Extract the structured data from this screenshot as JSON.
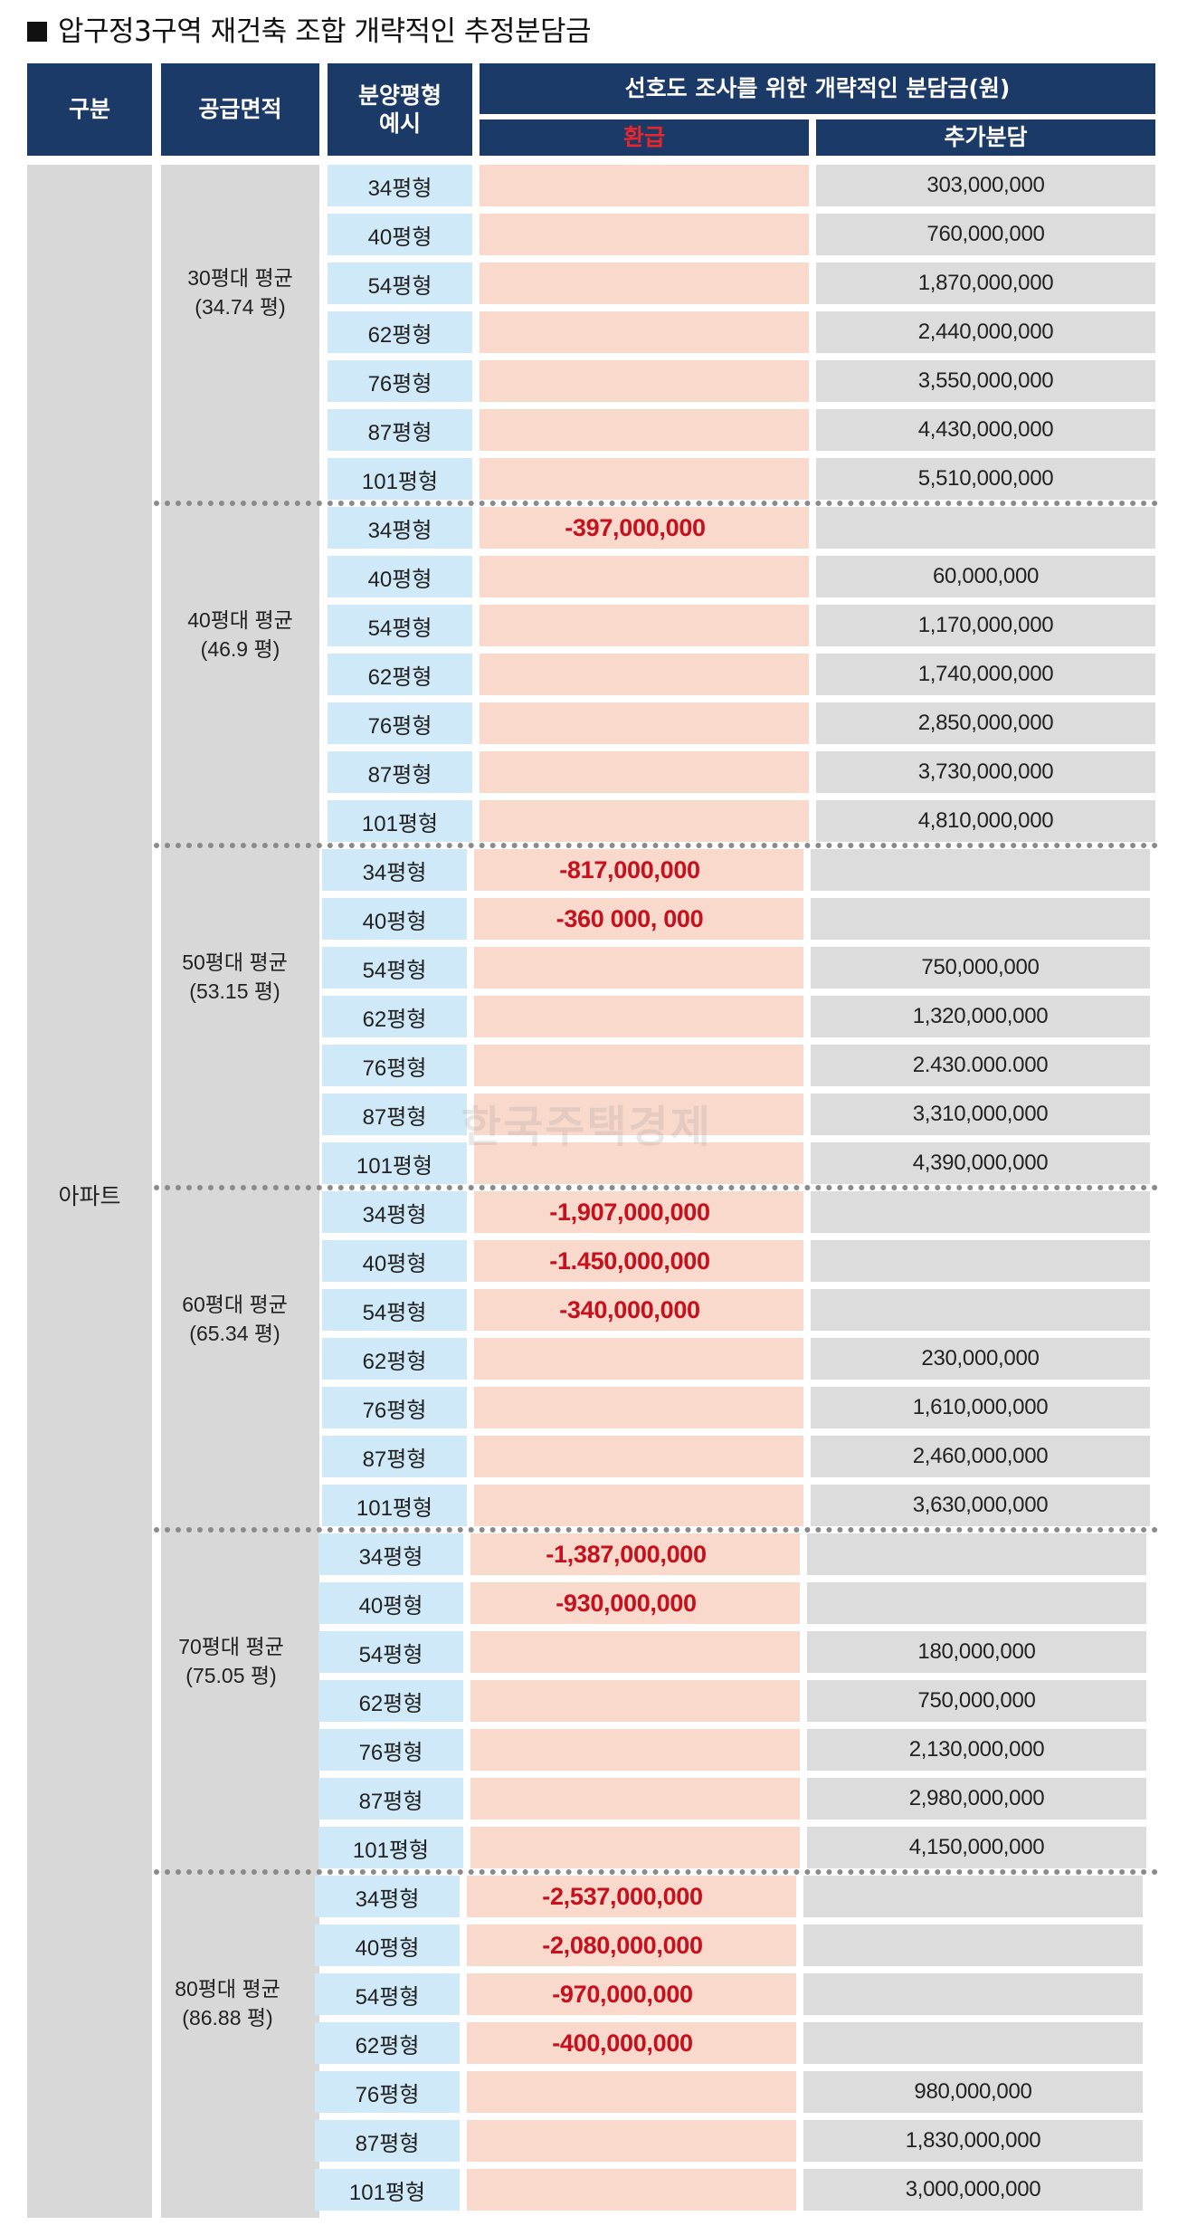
{
  "title": "압구정3구역 재건축 조합 개략적인 추정분담금",
  "headers": {
    "category": "구분",
    "supply_area": "공급면적",
    "type_example_line1": "분양평형",
    "type_example_line2": "예시",
    "survey": "선호도 조사를 위한 개략적인 분담금(원)",
    "refund": "환급",
    "additional": "추가분담"
  },
  "category_label": "아파트",
  "watermark": "한국주택경제",
  "groups": [
    {
      "label": "30평대 평균",
      "avg": "(34.74 평)",
      "rows": [
        {
          "type": "34평형",
          "refund": "",
          "add": "303,000,000"
        },
        {
          "type": "40평형",
          "refund": "",
          "add": "760,000,000"
        },
        {
          "type": "54평형",
          "refund": "",
          "add": "1,870,000,000"
        },
        {
          "type": "62평형",
          "refund": "",
          "add": "2,440,000,000"
        },
        {
          "type": "76평형",
          "refund": "",
          "add": "3,550,000,000"
        },
        {
          "type": "87평형",
          "refund": "",
          "add": "4,430,000,000"
        },
        {
          "type": "101평형",
          "refund": "",
          "add": "5,510,000,000"
        }
      ]
    },
    {
      "label": "40평대 평균",
      "avg": "(46.9 평)",
      "rows": [
        {
          "type": "34평형",
          "refund": "-397,000,000",
          "add": ""
        },
        {
          "type": "40평형",
          "refund": "",
          "add": "60,000,000"
        },
        {
          "type": "54평형",
          "refund": "",
          "add": "1,170,000,000"
        },
        {
          "type": "62평형",
          "refund": "",
          "add": "1,740,000,000"
        },
        {
          "type": "76평형",
          "refund": "",
          "add": "2,850,000,000"
        },
        {
          "type": "87평형",
          "refund": "",
          "add": "3,730,000,000"
        },
        {
          "type": "101평형",
          "refund": "",
          "add": "4,810,000,000"
        }
      ]
    },
    {
      "label": "50평대 평균",
      "avg": "(53.15 평)",
      "rows": [
        {
          "type": "34평형",
          "refund": "-817,000,000",
          "add": ""
        },
        {
          "type": "40평형",
          "refund": "-360 000, 000",
          "add": ""
        },
        {
          "type": "54평형",
          "refund": "",
          "add": "750,000,000"
        },
        {
          "type": "62평형",
          "refund": "",
          "add": "1,320,000,000"
        },
        {
          "type": "76평형",
          "refund": "",
          "add": "2.430.000.000"
        },
        {
          "type": "87평형",
          "refund": "",
          "add": "3,310,000,000"
        },
        {
          "type": "101평형",
          "refund": "",
          "add": "4,390,000,000"
        }
      ]
    },
    {
      "label": "60평대 평균",
      "avg": "(65.34 평)",
      "rows": [
        {
          "type": "34평형",
          "refund": "-1,907,000,000",
          "add": ""
        },
        {
          "type": "40평형",
          "refund": "-1.450,000,000",
          "add": ""
        },
        {
          "type": "54평형",
          "refund": "-340,000,000",
          "add": ""
        },
        {
          "type": "62평형",
          "refund": "",
          "add": "230,000,000"
        },
        {
          "type": "76평형",
          "refund": "",
          "add": "1,610,000,000"
        },
        {
          "type": "87평형",
          "refund": "",
          "add": "2,460,000,000"
        },
        {
          "type": "101평형",
          "refund": "",
          "add": "3,630,000,000"
        }
      ]
    },
    {
      "label": "70평대 평균",
      "avg": "(75.05 평)",
      "rows": [
        {
          "type": "34평형",
          "refund": "-1,387,000,000",
          "add": ""
        },
        {
          "type": "40평형",
          "refund": "-930,000,000",
          "add": ""
        },
        {
          "type": "54평형",
          "refund": "",
          "add": "180,000,000"
        },
        {
          "type": "62평형",
          "refund": "",
          "add": "750,000,000"
        },
        {
          "type": "76평형",
          "refund": "",
          "add": "2,130,000,000"
        },
        {
          "type": "87평형",
          "refund": "",
          "add": "2,980,000,000"
        },
        {
          "type": "101평형",
          "refund": "",
          "add": "4,150,000,000"
        }
      ]
    },
    {
      "label": "80평대 평균",
      "avg": "(86.88 평)",
      "rows": [
        {
          "type": "34평형",
          "refund": "-2,537,000,000",
          "add": ""
        },
        {
          "type": "40평형",
          "refund": "-2,080,000,000",
          "add": ""
        },
        {
          "type": "54평형",
          "refund": "-970,000,000",
          "add": ""
        },
        {
          "type": "62평형",
          "refund": "-400,000,000",
          "add": ""
        },
        {
          "type": "76평형",
          "refund": "",
          "add": "980,000,000"
        },
        {
          "type": "87평형",
          "refund": "",
          "add": "1,830,000,000"
        },
        {
          "type": "101평형",
          "refund": "",
          "add": "3,000,000,000"
        }
      ]
    }
  ]
}
